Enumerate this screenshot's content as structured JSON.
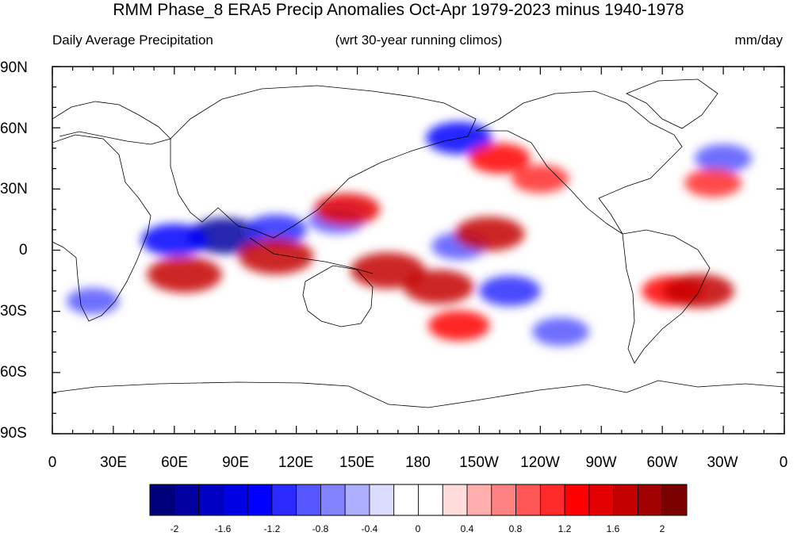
{
  "figure": {
    "title": "RMM Phase_8 ERA5 Precip Anomalies Oct-Apr 1979-2023 minus 1940-1978",
    "subtitle_left": "Daily Average Precipitation",
    "subtitle_center": "(wrt 30-year running climos)",
    "subtitle_right": "mm/day"
  },
  "axes": {
    "lat_ticks": [
      "90N",
      "60N",
      "30N",
      "0",
      "30S",
      "60S",
      "90S"
    ],
    "lon_ticks": [
      "0",
      "30E",
      "60E",
      "90E",
      "120E",
      "150E",
      "180",
      "150W",
      "120W",
      "90W",
      "60W",
      "30W",
      "0"
    ]
  },
  "colorbar": {
    "labels": [
      "-2",
      "-1.6",
      "-1.2",
      "-0.8",
      "-0.4",
      "0",
      "0.4",
      "0.8",
      "1.2",
      "1.6",
      "2"
    ],
    "colors": [
      "#00007a",
      "#0000a0",
      "#0000c4",
      "#0000e4",
      "#0000ff",
      "#2a2aff",
      "#5656ff",
      "#8282ff",
      "#aeaeff",
      "#dcdcff",
      "#ffffff",
      "#ffffff",
      "#ffdcdc",
      "#ffaeae",
      "#ff8282",
      "#ff5656",
      "#ff2a2a",
      "#ff0000",
      "#e40000",
      "#c40000",
      "#a00000",
      "#7a0000"
    ]
  },
  "chart_data": {
    "type": "heatmap",
    "variable": "Daily Average Precipitation anomaly",
    "units": "mm/day",
    "lon_range": [
      0,
      360
    ],
    "lat_range": [
      -90,
      90
    ],
    "color_range": [
      -2,
      2
    ],
    "anomaly_patches": [
      {
        "lon": 85,
        "lat": 7,
        "value": -1.8
      },
      {
        "lon": 60,
        "lat": 5,
        "value": -1.4
      },
      {
        "lon": 110,
        "lat": 10,
        "value": -1.2
      },
      {
        "lon": 140,
        "lat": 15,
        "value": -1.0
      },
      {
        "lon": 200,
        "lat": 2,
        "value": -0.9
      },
      {
        "lon": 225,
        "lat": -20,
        "value": -1.2
      },
      {
        "lon": 250,
        "lat": -40,
        "value": -1.0
      },
      {
        "lon": 200,
        "lat": 55,
        "value": -1.4
      },
      {
        "lon": 330,
        "lat": 45,
        "value": -1.0
      },
      {
        "lon": 20,
        "lat": -25,
        "value": -0.8
      },
      {
        "lon": 65,
        "lat": -12,
        "value": 1.8
      },
      {
        "lon": 110,
        "lat": -3,
        "value": 1.8
      },
      {
        "lon": 165,
        "lat": -10,
        "value": 1.8
      },
      {
        "lon": 190,
        "lat": -18,
        "value": 1.6
      },
      {
        "lon": 145,
        "lat": 20,
        "value": 1.4
      },
      {
        "lon": 215,
        "lat": 8,
        "value": 1.6
      },
      {
        "lon": 305,
        "lat": -20,
        "value": 1.2
      },
      {
        "lon": 318,
        "lat": -20,
        "value": 1.6
      },
      {
        "lon": 200,
        "lat": -37,
        "value": 1.2
      },
      {
        "lon": 220,
        "lat": 45,
        "value": 1.2
      },
      {
        "lon": 240,
        "lat": 35,
        "value": 1.0
      },
      {
        "lon": 325,
        "lat": 33,
        "value": 1.0
      }
    ]
  }
}
